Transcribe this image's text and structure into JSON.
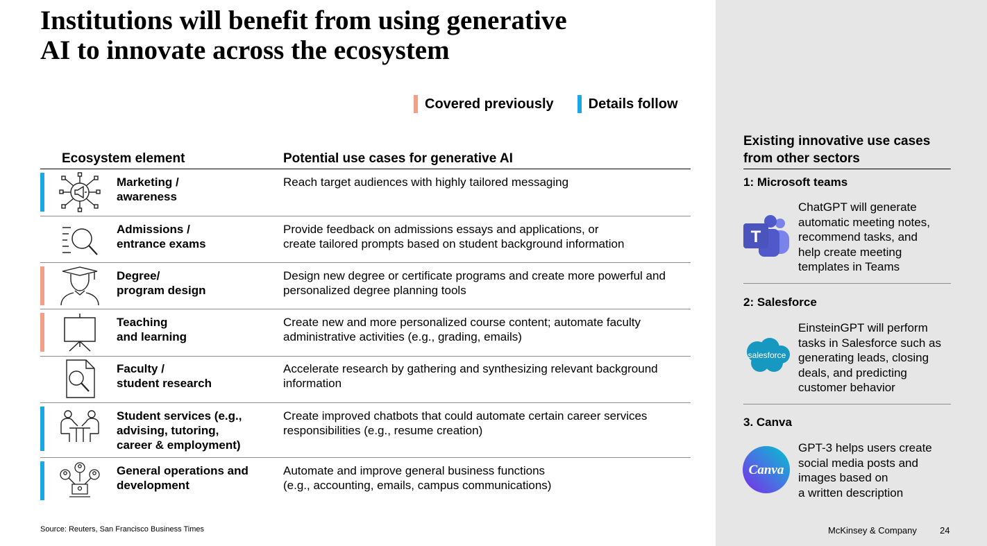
{
  "title_lines": [
    "Institutions will benefit from using generative",
    "AI to innovate across the ecosystem"
  ],
  "legend": {
    "covered": {
      "label": "Covered previously",
      "color": "#f4a089"
    },
    "details": {
      "label": "Details follow",
      "color": "#1ba6e8"
    }
  },
  "table": {
    "headers": {
      "element": "Ecosystem element",
      "use_cases": "Potential use cases for generative AI"
    },
    "rows": [
      {
        "icon": "megaphone-network-icon",
        "marker": "blue",
        "label": [
          "Marketing /",
          "awareness"
        ],
        "use": [
          "Reach target audiences with highly tailored messaging"
        ]
      },
      {
        "icon": "list-magnifier-icon",
        "marker": "none",
        "label": [
          "Admissions /",
          "entrance exams"
        ],
        "use": [
          "Provide feedback on admissions essays and applications, or",
          "create tailored prompts based on student background information"
        ]
      },
      {
        "icon": "graduate-icon",
        "marker": "salmon",
        "label": [
          "Degree/",
          "program design"
        ],
        "use": [
          "Design new degree or certificate programs and create more powerful and",
          "personalized degree planning tools"
        ]
      },
      {
        "icon": "easel-icon",
        "marker": "salmon",
        "label": [
          "Teaching",
          "and learning"
        ],
        "use": [
          "Create new and more personalized course content; automate faculty",
          "administrative activities (e.g., grading, emails)"
        ]
      },
      {
        "icon": "document-search-icon",
        "marker": "none",
        "label": [
          "Faculty /",
          "student research"
        ],
        "use": [
          "Accelerate research by gathering and synthesizing relevant background",
          "information"
        ]
      },
      {
        "icon": "meeting-icon",
        "marker": "blue",
        "label": [
          "Student services (e.g.,",
          "advising, tutoring,",
          "career & employment)"
        ],
        "use": [
          "Create improved chatbots that could automate certain career services",
          "responsibilities (e.g., resume creation)"
        ]
      },
      {
        "icon": "org-network-icon",
        "marker": "blue",
        "label": [
          "General operations and",
          "development"
        ],
        "use": [
          "Automate and improve general business functions",
          "(e.g., accounting, emails, campus communications)"
        ]
      }
    ]
  },
  "source": "Source: Reuters, San Francisco Business Times",
  "sidebar": {
    "title_lines": [
      "Existing innovative use cases",
      "from other sectors"
    ],
    "cases": [
      {
        "title": "1: Microsoft teams",
        "logo": "microsoft-teams-icon",
        "logo_text": "T",
        "desc": [
          "ChatGPT will generate",
          "automatic meeting notes,",
          "recommend tasks, and",
          "help create meeting",
          "templates in Teams"
        ]
      },
      {
        "title": "2: Salesforce",
        "logo": "salesforce-icon",
        "logo_text": "salesforce",
        "desc": [
          "EinsteinGPT will perform",
          "tasks in Salesforce such as",
          "generating leads, closing",
          "deals, and predicting",
          "customer behavior"
        ]
      },
      {
        "title": "3. Canva",
        "logo": "canva-icon",
        "logo_text": "Canva",
        "desc": [
          "GPT-3 helps users create",
          "social media posts and",
          "images based on",
          "a written description"
        ]
      }
    ]
  },
  "footer": {
    "brand": "McKinsey & Company",
    "page": "24"
  }
}
